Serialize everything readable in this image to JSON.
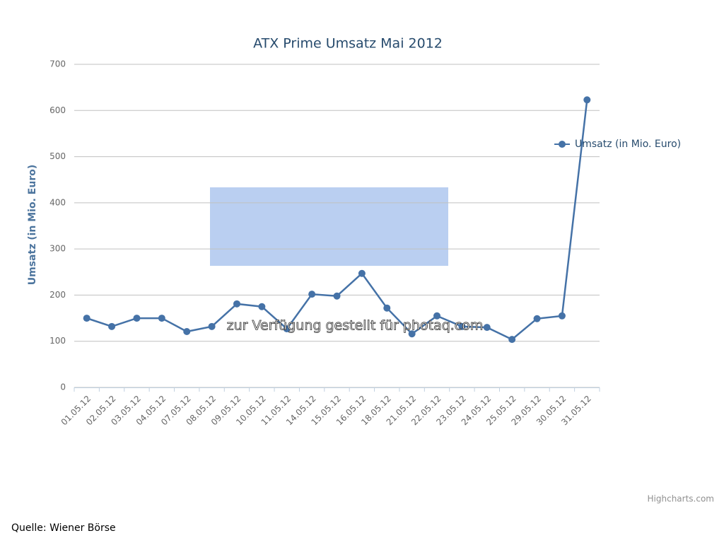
{
  "chart_data": {
    "type": "line",
    "title": "ATX Prime Umsatz Mai 2012",
    "y_axis_label": "Umsatz (in Mio. Euro)",
    "categories": [
      "01.05.12",
      "02.05.12",
      "03.05.12",
      "04.05.12",
      "07.05.12",
      "08.05.12",
      "09.05.12",
      "10.05.12",
      "11.05.12",
      "14.05.12",
      "15.05.12",
      "16.05.12",
      "18.05.12",
      "21.05.12",
      "22.05.12",
      "23.05.12",
      "24.05.12",
      "25.05.12",
      "29.05.12",
      "30.05.12",
      "31.05.12"
    ],
    "series": [
      {
        "name": "Umsatz (in Mio. Euro)",
        "color": "#4572a7",
        "values": [
          150,
          132,
          150,
          150,
          121,
          132,
          181,
          175,
          127,
          202,
          198,
          247,
          172,
          116,
          155,
          132,
          130,
          104,
          149,
          155,
          623
        ]
      }
    ],
    "ylim": [
      0,
      700
    ],
    "yticks": [
      0,
      100,
      200,
      300,
      400,
      500,
      600,
      700
    ],
    "grid": true,
    "legend": "right",
    "annotation": "zur Verfügung gestellt für photaq.com",
    "credits": "Highcharts.com",
    "source": "Quelle: Wiener Börse"
  }
}
